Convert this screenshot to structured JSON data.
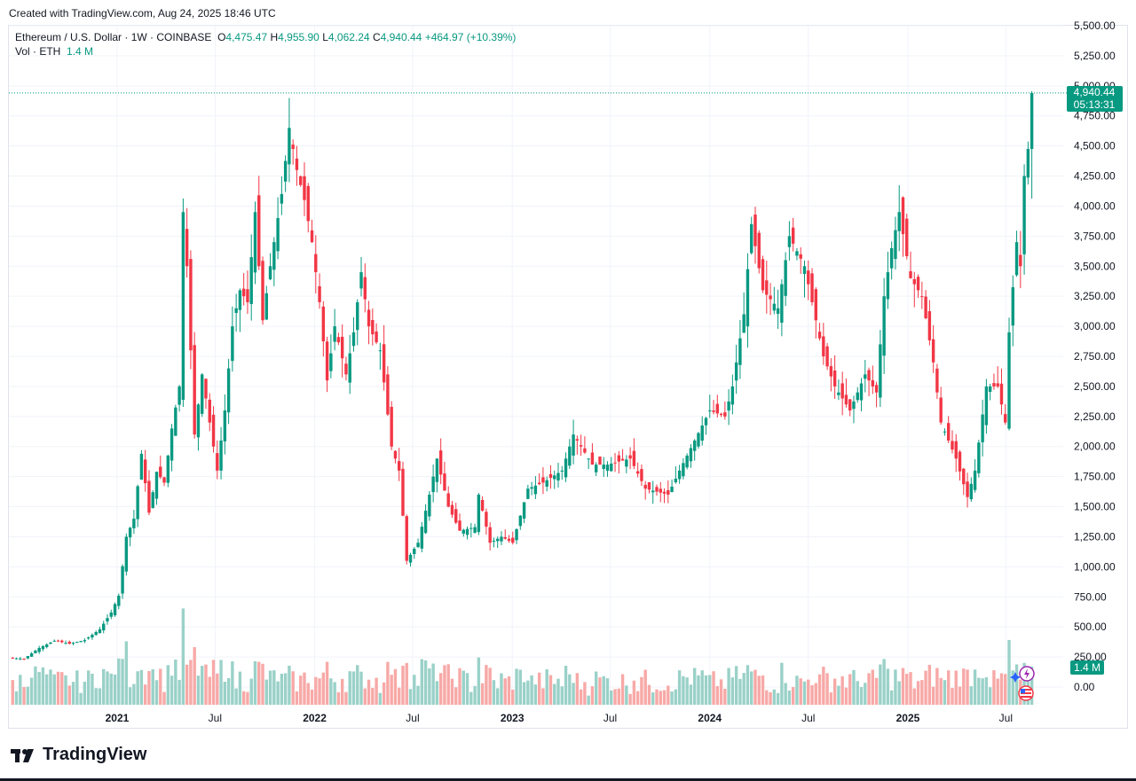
{
  "created_text": "Created with TradingView.com, Aug 24, 2025 18:46 UTC",
  "legend": {
    "symbol": "Ethereum / U.S. Dollar · 1W · COINBASE",
    "o_label": "O",
    "o": "4,475.47",
    "h_label": "H",
    "h": "4,955.90",
    "l_label": "L",
    "l": "4,062.24",
    "c_label": "C",
    "c": "4,940.44",
    "change": "+464.97 (+10.39%)",
    "vol_label": "Vol · ETH",
    "vol": "1.4 M"
  },
  "badges": {
    "last_price": "4,940.44",
    "countdown": "05:13:31",
    "volume": "1.4 M"
  },
  "brand": "TradingView",
  "colors": {
    "up": "#089981",
    "down": "#f23645",
    "up_vol": "#9ad1c8",
    "down_vol": "#f7a9a7",
    "grid": "#f0f3fa",
    "axis_text": "#131722"
  },
  "chart_data": {
    "type": "candlestick",
    "title": "Ethereum / U.S. Dollar · 1W · COINBASE",
    "ylim": [
      0,
      5500
    ],
    "y_ticks": [
      "0.00",
      "250.00",
      "500.00",
      "750.00",
      "1,000.00",
      "1,250.00",
      "1,500.00",
      "1,750.00",
      "2,000.00",
      "2,250.00",
      "2,500.00",
      "2,750.00",
      "3,000.00",
      "3,250.00",
      "3,500.00",
      "3,750.00",
      "4,000.00",
      "4,250.00",
      "4,500.00",
      "4,750.00",
      "5,000.00",
      "5,250.00",
      "5,500.00"
    ],
    "x_ticks": [
      {
        "label": "2021",
        "date": "2021-01-01",
        "bold": true
      },
      {
        "label": "Jul",
        "date": "2021-07-01",
        "bold": false
      },
      {
        "label": "2022",
        "date": "2022-01-01",
        "bold": true
      },
      {
        "label": "Jul",
        "date": "2022-07-01",
        "bold": false
      },
      {
        "label": "2023",
        "date": "2023-01-01",
        "bold": true
      },
      {
        "label": "Jul",
        "date": "2023-07-01",
        "bold": false
      },
      {
        "label": "2024",
        "date": "2024-01-01",
        "bold": true
      },
      {
        "label": "Jul",
        "date": "2024-07-01",
        "bold": false
      },
      {
        "label": "2025",
        "date": "2025-01-01",
        "bold": true
      },
      {
        "label": "Jul",
        "date": "2025-07-01",
        "bold": false
      }
    ],
    "x_range": [
      "2020-06-15",
      "2025-10-15"
    ],
    "last_close": 4940.44,
    "series": [
      {
        "name": "Ethereum / U.S. Dollar",
        "values": [
          [
            "2020-06-22",
            243,
            235
          ],
          [
            "2020-07-20",
            235,
            325
          ],
          [
            "2020-08-17",
            325,
            385
          ],
          [
            "2020-09-14",
            385,
            360
          ],
          [
            "2020-10-12",
            360,
            390
          ],
          [
            "2020-11-09",
            390,
            480
          ],
          [
            "2020-12-07",
            480,
            620
          ],
          [
            "2020-12-28",
            620,
            760
          ],
          [
            "2021-01-11",
            760,
            1250
          ],
          [
            "2021-01-25",
            1250,
            1400
          ],
          [
            "2021-02-08",
            1400,
            1940
          ],
          [
            "2021-02-22",
            1940,
            1450
          ],
          [
            "2021-03-08",
            1450,
            1790
          ],
          [
            "2021-03-22",
            1790,
            1700
          ],
          [
            "2021-04-05",
            1700,
            2150
          ],
          [
            "2021-04-19",
            2150,
            2500
          ],
          [
            "2021-05-03",
            2500,
            3950
          ],
          [
            "2021-05-10",
            3950,
            3500
          ],
          [
            "2021-05-17",
            3500,
            2100
          ],
          [
            "2021-05-31",
            2100,
            2600
          ],
          [
            "2021-06-14",
            2600,
            2200
          ],
          [
            "2021-06-28",
            2200,
            1800
          ],
          [
            "2021-07-12",
            1800,
            2300
          ],
          [
            "2021-07-26",
            2300,
            3000
          ],
          [
            "2021-08-09",
            3000,
            3300
          ],
          [
            "2021-08-23",
            3300,
            3200
          ],
          [
            "2021-09-06",
            3200,
            3950
          ],
          [
            "2021-09-20",
            3950,
            3050
          ],
          [
            "2021-10-04",
            3050,
            3500
          ],
          [
            "2021-10-18",
            3500,
            4100
          ],
          [
            "2021-11-08",
            4100,
            4650
          ],
          [
            "2021-11-22",
            4650,
            4300
          ],
          [
            "2021-12-06",
            4300,
            4050
          ],
          [
            "2021-12-20",
            4050,
            3700
          ],
          [
            "2022-01-03",
            3700,
            3200
          ],
          [
            "2022-01-17",
            3200,
            2550
          ],
          [
            "2022-01-31",
            2550,
            3000
          ],
          [
            "2022-02-14",
            3000,
            2600
          ],
          [
            "2022-03-07",
            2600,
            2950
          ],
          [
            "2022-03-21",
            2950,
            3450
          ],
          [
            "2022-04-04",
            3450,
            3000
          ],
          [
            "2022-04-18",
            3000,
            2800
          ],
          [
            "2022-05-09",
            2800,
            2000
          ],
          [
            "2022-05-30",
            2000,
            1800
          ],
          [
            "2022-06-13",
            1800,
            1050
          ],
          [
            "2022-06-27",
            1050,
            1200
          ],
          [
            "2022-07-18",
            1200,
            1600
          ],
          [
            "2022-08-08",
            1600,
            1900
          ],
          [
            "2022-08-22",
            1900,
            1500
          ],
          [
            "2022-09-12",
            1500,
            1300
          ],
          [
            "2022-10-03",
            1300,
            1330
          ],
          [
            "2022-10-31",
            1330,
            1600
          ],
          [
            "2022-11-07",
            1600,
            1200
          ],
          [
            "2022-11-28",
            1200,
            1250
          ],
          [
            "2022-12-19",
            1250,
            1200
          ],
          [
            "2023-01-09",
            1200,
            1650
          ],
          [
            "2023-02-06",
            1650,
            1700
          ],
          [
            "2023-03-06",
            1700,
            1800
          ],
          [
            "2023-04-10",
            1800,
            2100
          ],
          [
            "2023-05-01",
            2100,
            1850
          ],
          [
            "2023-06-05",
            1850,
            1850
          ],
          [
            "2023-07-03",
            1850,
            1900
          ],
          [
            "2023-08-14",
            1900,
            1650
          ],
          [
            "2023-09-11",
            1650,
            1600
          ],
          [
            "2023-10-23",
            1600,
            1800
          ],
          [
            "2023-11-13",
            1800,
            2050
          ],
          [
            "2023-12-11",
            2050,
            2300
          ],
          [
            "2024-01-08",
            2300,
            2250
          ],
          [
            "2024-02-05",
            2250,
            2500
          ],
          [
            "2024-02-19",
            2500,
            3100
          ],
          [
            "2024-03-11",
            3100,
            3850
          ],
          [
            "2024-03-25",
            3850,
            3300
          ],
          [
            "2024-04-15",
            3300,
            3150
          ],
          [
            "2024-05-13",
            3150,
            3750
          ],
          [
            "2024-06-03",
            3750,
            3500
          ],
          [
            "2024-07-01",
            3500,
            3050
          ],
          [
            "2024-07-22",
            3050,
            2750
          ],
          [
            "2024-08-05",
            2750,
            2500
          ],
          [
            "2024-08-26",
            2500,
            2300
          ],
          [
            "2024-09-23",
            2300,
            2600
          ],
          [
            "2024-10-21",
            2600,
            2450
          ],
          [
            "2024-11-11",
            2450,
            3250
          ],
          [
            "2024-11-25",
            3250,
            3650
          ],
          [
            "2024-12-09",
            3650,
            3950
          ],
          [
            "2024-12-23",
            3950,
            3400
          ],
          [
            "2025-01-13",
            3400,
            3250
          ],
          [
            "2025-02-03",
            3250,
            2700
          ],
          [
            "2025-02-24",
            2700,
            2200
          ],
          [
            "2025-03-10",
            2200,
            1900
          ],
          [
            "2025-04-07",
            1900,
            1580
          ],
          [
            "2025-04-28",
            1580,
            1800
          ],
          [
            "2025-05-12",
            1800,
            2500
          ],
          [
            "2025-06-02",
            2500,
            2500
          ],
          [
            "2025-06-23",
            2500,
            2200
          ],
          [
            "2025-07-07",
            2200,
            2950
          ],
          [
            "2025-07-14",
            2950,
            3700
          ],
          [
            "2025-07-28",
            3700,
            3500
          ],
          [
            "2025-08-04",
            3500,
            4250
          ],
          [
            "2025-08-11",
            4250,
            4475
          ],
          [
            "2025-08-18",
            4475,
            4940
          ]
        ]
      }
    ]
  }
}
